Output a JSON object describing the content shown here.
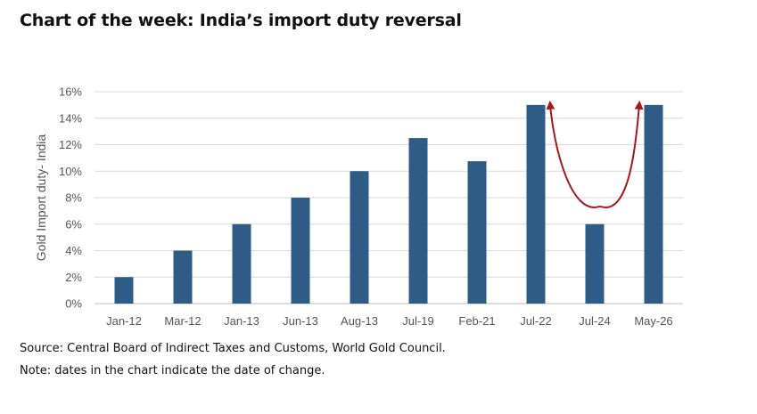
{
  "title": "Chart of the week: India’s import duty reversal",
  "source": "Source: Central Board of Indirect Taxes and Customs, World Gold Council.",
  "note": "Note: dates in the chart indicate the date of change.",
  "chart_data": {
    "type": "bar",
    "categories": [
      "Jan-12",
      "Mar-12",
      "Jan-13",
      "Jun-13",
      "Aug-13",
      "Jul-19",
      "Feb-21",
      "Jul-22",
      "Jul-24",
      "May-26"
    ],
    "values": [
      2,
      4,
      6,
      8,
      10,
      12.5,
      10.75,
      15,
      6,
      15
    ],
    "ylabel": "Gold Import duty- India",
    "ylim": [
      0,
      16
    ],
    "yticks": [
      "0%",
      "2%",
      "4%",
      "6%",
      "8%",
      "10%",
      "12%",
      "14%",
      "16%"
    ],
    "grid": true,
    "colors": {
      "bar": "#2e5c86",
      "arrow": "#a3191c",
      "grid": "#d9d9d9"
    },
    "annotation": "curved arrow from Jul-22 down to Jul-24 and back up to May-26"
  }
}
